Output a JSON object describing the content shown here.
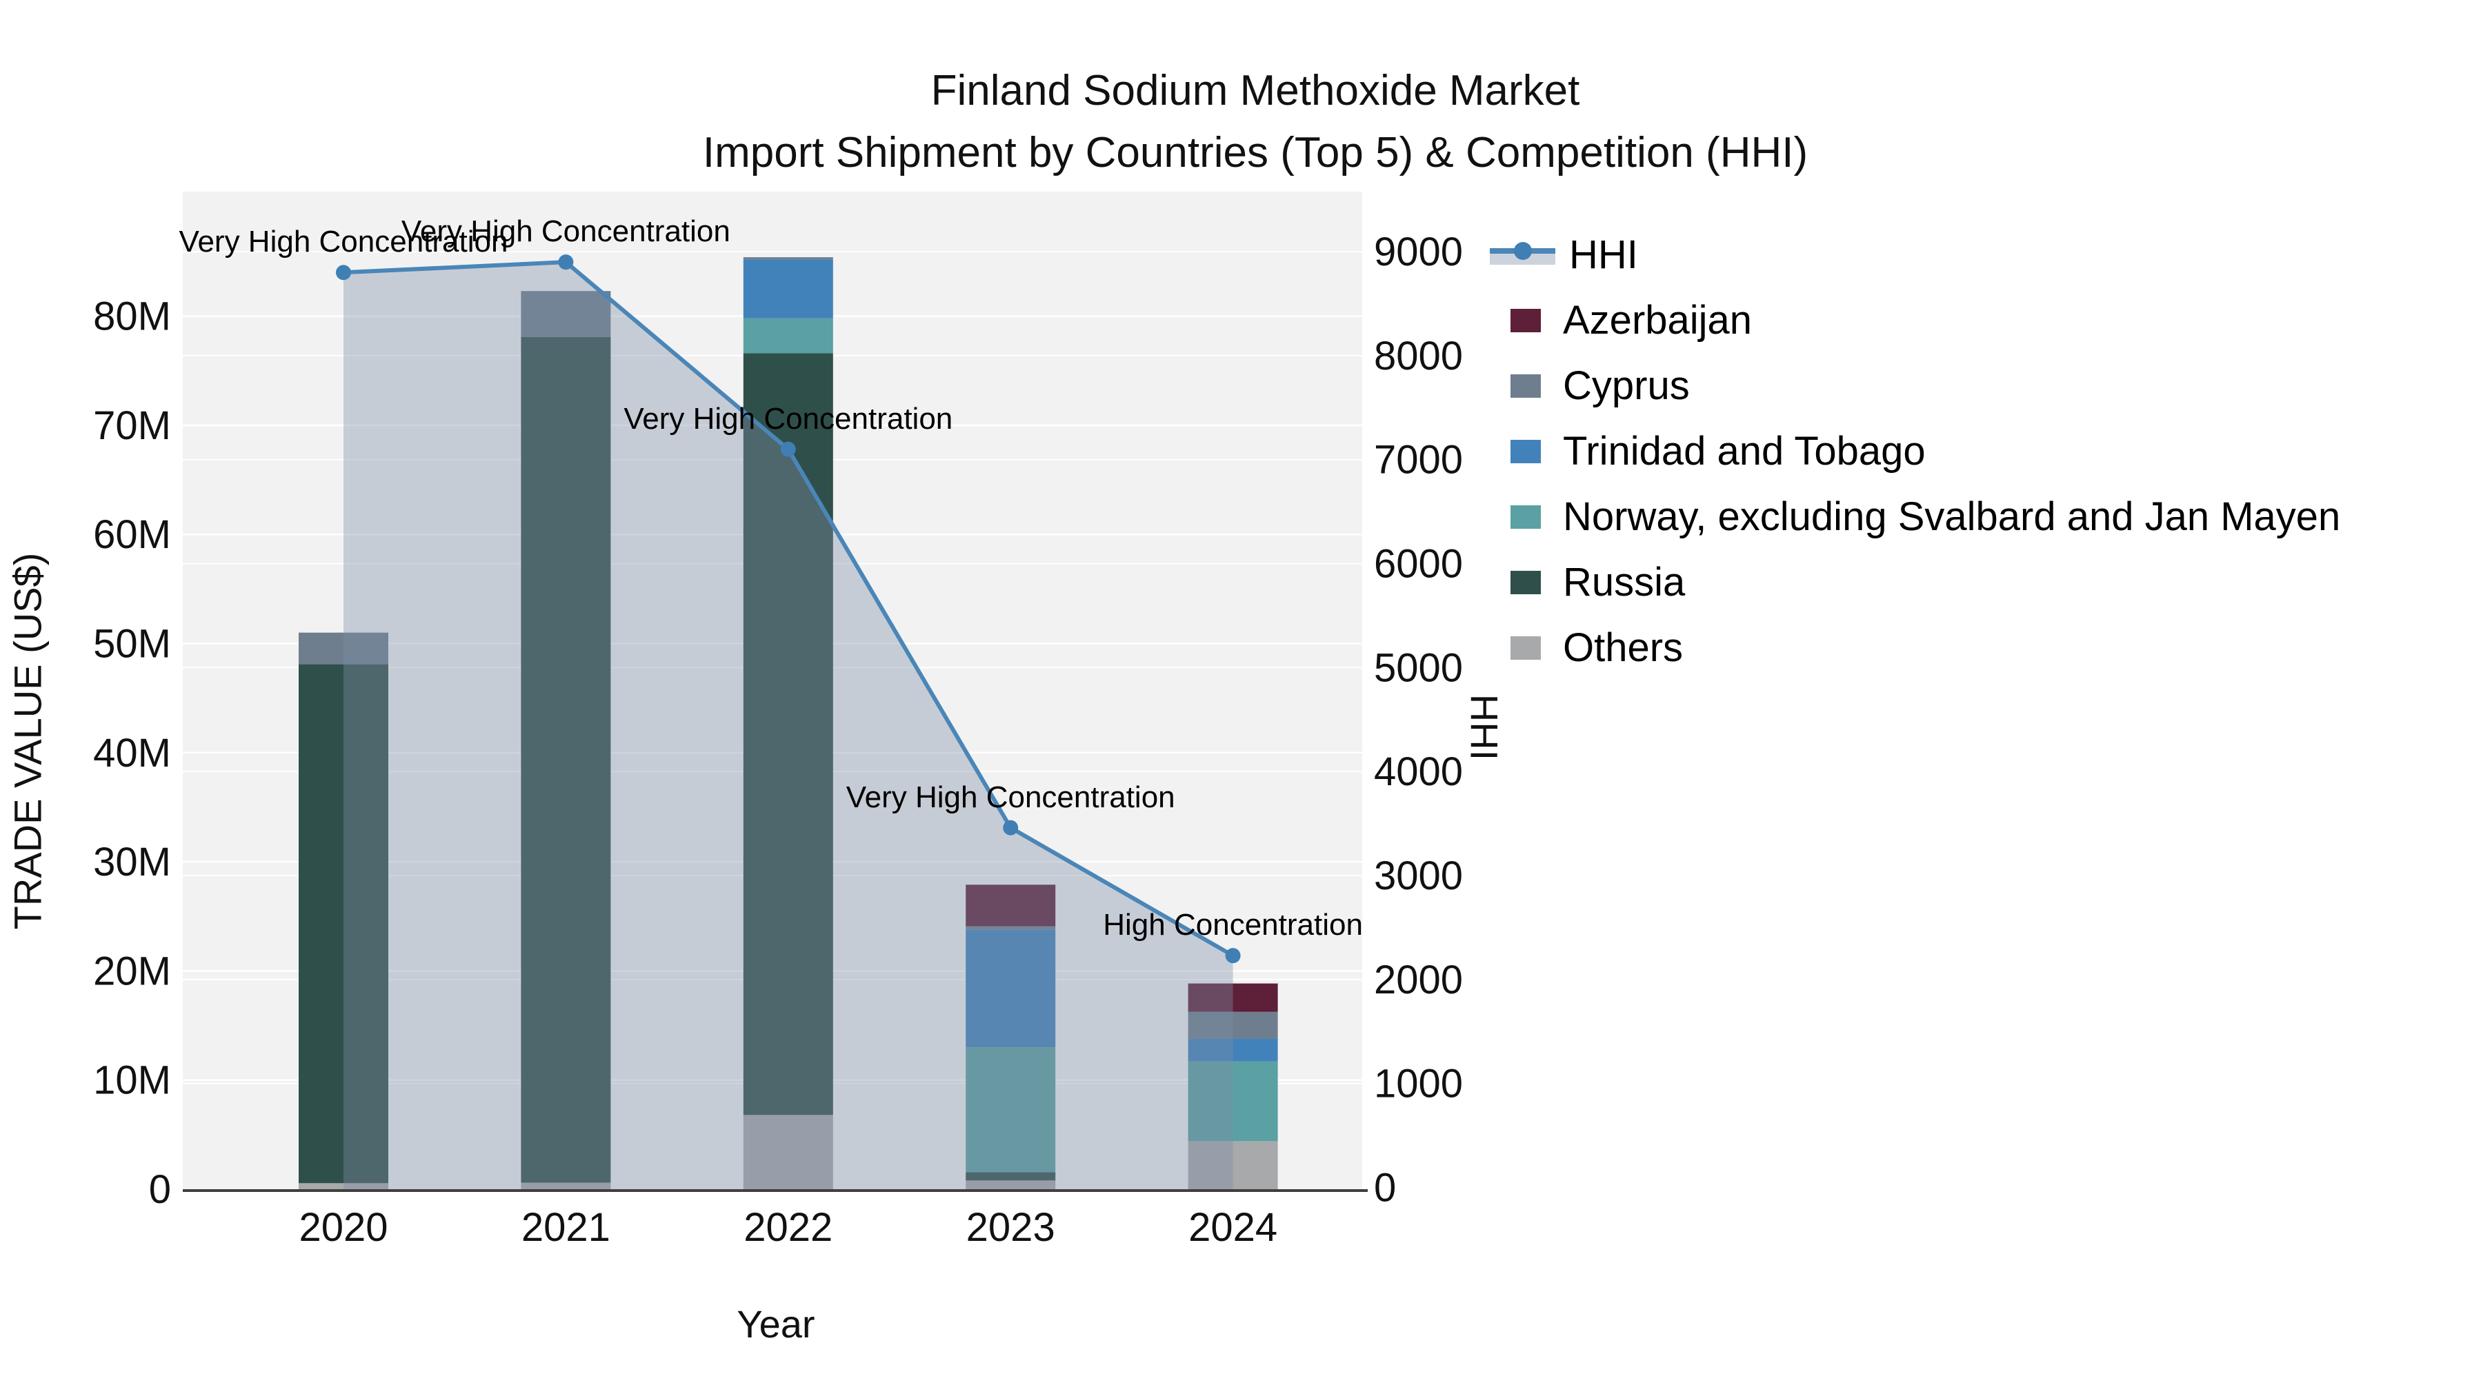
{
  "title": {
    "line1": "Finland Sodium Methoxide Market",
    "line2": "Import Shipment by Countries (Top 5) & Competition (HHI)"
  },
  "axes": {
    "left": {
      "title": "TRADE VALUE (US$)",
      "tick_labels": [
        "0",
        "10M",
        "20M",
        "30M",
        "40M",
        "50M",
        "60M",
        "70M",
        "80M"
      ],
      "tick_values": [
        0,
        10,
        20,
        30,
        40,
        50,
        60,
        70,
        80
      ]
    },
    "right": {
      "title": "HHI",
      "tick_labels": [
        "0",
        "1000",
        "2000",
        "3000",
        "4000",
        "5000",
        "6000",
        "7000",
        "8000",
        "9000"
      ],
      "tick_values": [
        0,
        1000,
        2000,
        3000,
        4000,
        5000,
        6000,
        7000,
        8000,
        9000
      ]
    },
    "x": {
      "title": "Year",
      "categories": [
        "2020",
        "2021",
        "2022",
        "2023",
        "2024"
      ]
    }
  },
  "annotations": [
    {
      "category": "2020",
      "text": "Very High Concentration"
    },
    {
      "category": "2021",
      "text": "Very High Concentration"
    },
    {
      "category": "2022",
      "text": "Very High Concentration"
    },
    {
      "category": "2023",
      "text": "Very High Concentration"
    },
    {
      "category": "2024",
      "text": "High Concentration"
    }
  ],
  "legend": {
    "items": [
      {
        "label": "HHI",
        "type": "line",
        "line_color": "#4a86b8",
        "marker_color": "#3f7fb4",
        "band_color": "#ccd3dc"
      },
      {
        "label": "Azerbaijan",
        "type": "bar",
        "color": "#5e1f39"
      },
      {
        "label": "Cyprus",
        "type": "bar",
        "color": "#6f7e8e"
      },
      {
        "label": "Trinidad and Tobago",
        "type": "bar",
        "color": "#4282ba"
      },
      {
        "label": "Norway, excluding Svalbard and Jan Mayen",
        "type": "bar",
        "color": "#5ba0a2"
      },
      {
        "label": "Russia",
        "type": "bar",
        "color": "#2f4f4b"
      },
      {
        "label": "Others",
        "type": "bar",
        "color": "#a7a9ab"
      }
    ]
  },
  "chart_data": {
    "type": "bar",
    "subtype": "stacked-bar-with-line",
    "title": "Finland Sodium Methoxide Market — Import Shipment by Countries (Top 5) & Competition (HHI)",
    "xlabel": "Year",
    "ylabel_left": "TRADE VALUE (US$)",
    "ylabel_right": "HHI",
    "categories": [
      "2020",
      "2021",
      "2022",
      "2023",
      "2024"
    ],
    "bar_unit": "million US$",
    "series": [
      {
        "name": "Azerbaijan",
        "color": "#5e1f39",
        "values": [
          0,
          0,
          0,
          3.8,
          2.6
        ]
      },
      {
        "name": "Cyprus",
        "color": "#6f7e8e",
        "values": [
          2.9,
          4.2,
          0.2,
          0.3,
          2.45
        ]
      },
      {
        "name": "Trinidad and Tobago",
        "color": "#4282ba",
        "values": [
          0,
          0,
          5.4,
          10.8,
          2.1
        ]
      },
      {
        "name": "Norway, excluding Svalbard and Jan Mayen",
        "color": "#5ba0a2",
        "values": [
          0,
          0,
          3.2,
          11.45,
          7.3
        ]
      },
      {
        "name": "Russia",
        "color": "#2f4f4b",
        "values": [
          47.55,
          77.5,
          69.8,
          0.75,
          0
        ]
      },
      {
        "name": "Others",
        "color": "#a7a9ab",
        "values": [
          0.55,
          0.6,
          6.8,
          0.8,
          4.4
        ]
      }
    ],
    "stack_order_bottom_to_top": [
      "Others",
      "Russia",
      "Norway, excluding Svalbard and Jan Mayen",
      "Trinidad and Tobago",
      "Cyprus",
      "Azerbaijan"
    ],
    "bar_totals": [
      51.0,
      82.3,
      85.4,
      27.9,
      18.85
    ],
    "line_series": {
      "name": "HHI",
      "axis": "right",
      "color": "#4a86b8",
      "marker_color": "#3f7fb4",
      "area_fill": "rgba(127,142,166,0.38)",
      "values": [
        8800,
        8900,
        7100,
        3460,
        2230
      ]
    },
    "ylim_left": [
      0,
      91.4
    ],
    "ylim_right": [
      0,
      9580
    ],
    "grid": true,
    "plot_bg": "#f2f2f2",
    "grid_color": "#ffffff",
    "axis_line_color": "#3f3f3f",
    "legend_position": "right"
  }
}
